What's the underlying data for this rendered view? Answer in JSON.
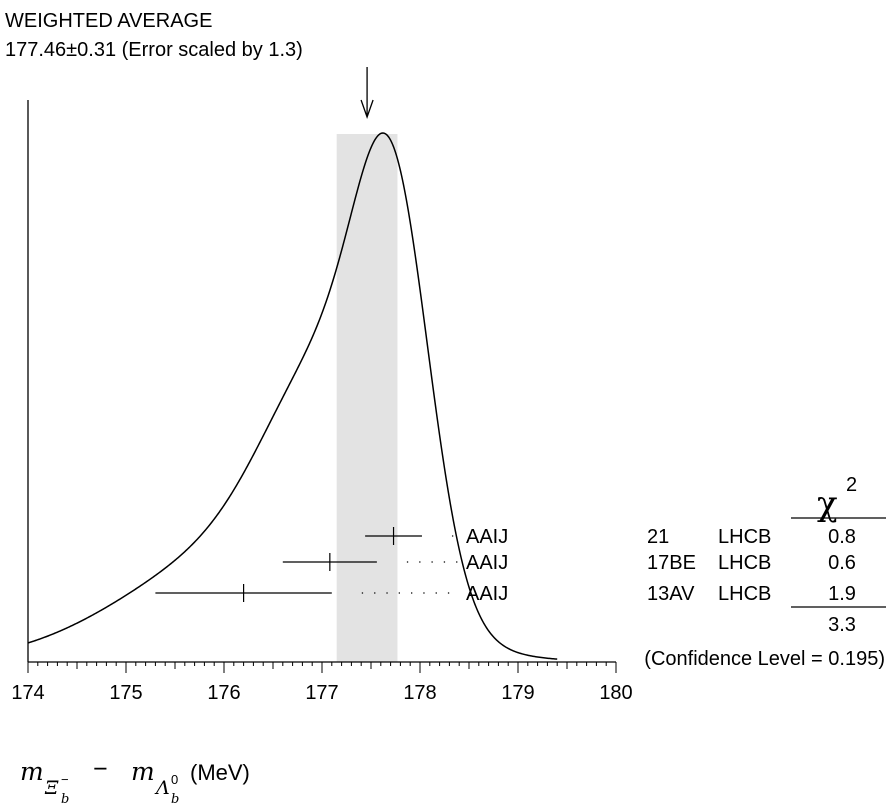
{
  "chart_data": {
    "type": "ideogram",
    "title": "WEIGHTED AVERAGE",
    "average_label": "177.46±0.31 (Error scaled by 1.3)",
    "average": {
      "value": 177.46,
      "error": 0.31,
      "scale_factor": 1.3
    },
    "xlim": [
      174,
      180
    ],
    "xticks": [
      "174",
      "175",
      "176",
      "177",
      "178",
      "179",
      "180"
    ],
    "xlabel": "mΞ_b⁻ − mΛ_b⁰ (MeV)",
    "xlabel_parts": {
      "m1": "m",
      "sub1": "Ξ",
      "sub1_sub": "b",
      "sub1_sup": "−",
      "minus": "−",
      "m2": "m",
      "sub2": "Λ",
      "sub2_sub": "b",
      "sub2_sup": "0",
      "unit": "(MeV)"
    },
    "measurements": [
      {
        "value": 177.73,
        "error": 0.29,
        "author": "AAIJ",
        "year": "21",
        "experiment": "LHCB",
        "chi2": "0.8"
      },
      {
        "value": 177.08,
        "error": 0.48,
        "author": "AAIJ",
        "year": "17BE",
        "experiment": "LHCB",
        "chi2": "0.6"
      },
      {
        "value": 176.2,
        "error": 0.9,
        "author": "AAIJ",
        "year": "13AV",
        "experiment": "LHCB",
        "chi2": "1.9"
      }
    ],
    "chi2_header_base": "χ",
    "chi2_header_exp": "2",
    "chi2_total": "3.3",
    "confidence_level": "(Confidence Level = 0.195)"
  }
}
